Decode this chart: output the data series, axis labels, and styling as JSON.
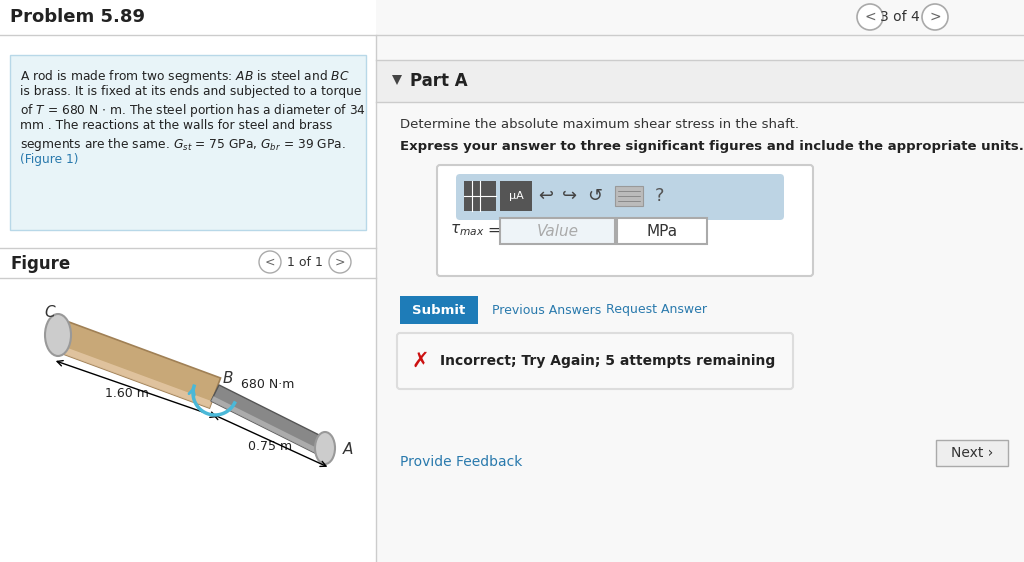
{
  "title": "Problem 5.89",
  "nav_text": "3 of 4",
  "part_a_label": "Part A",
  "question_line1": "Determine the absolute maximum shear stress in the shaft.",
  "question_line2": "Express your answer to three significant figures and include the appropriate units.",
  "value_placeholder": "Value",
  "unit_text": "MPa",
  "submit_text": "Submit",
  "prev_answers_text": "Previous Answers",
  "request_answer_text": "Request Answer",
  "incorrect_text": "Incorrect; Try Again; 5 attempts remaining",
  "provide_feedback_text": "Provide Feedback",
  "next_text": "Next ›",
  "figure_label": "Figure",
  "figure_nav": "1 of 1",
  "bg_color": "#ffffff",
  "left_bg": "#ffffff",
  "right_bg": "#f8f8f8",
  "prob_box_bg": "#e8f4f8",
  "prob_box_border": "#b8d8e8",
  "part_a_bar_bg": "#eeeeee",
  "toolbar_bg": "#bdd4e4",
  "input_border": "#aaaaaa",
  "submit_color": "#1e7cb8",
  "link_color": "#2a7aad",
  "incorrect_border": "#dddddd",
  "divider_color": "#cccccc",
  "nav_border": "#aaaaaa",
  "title_color": "#222222",
  "text_color": "#333333",
  "white": "#ffffff"
}
